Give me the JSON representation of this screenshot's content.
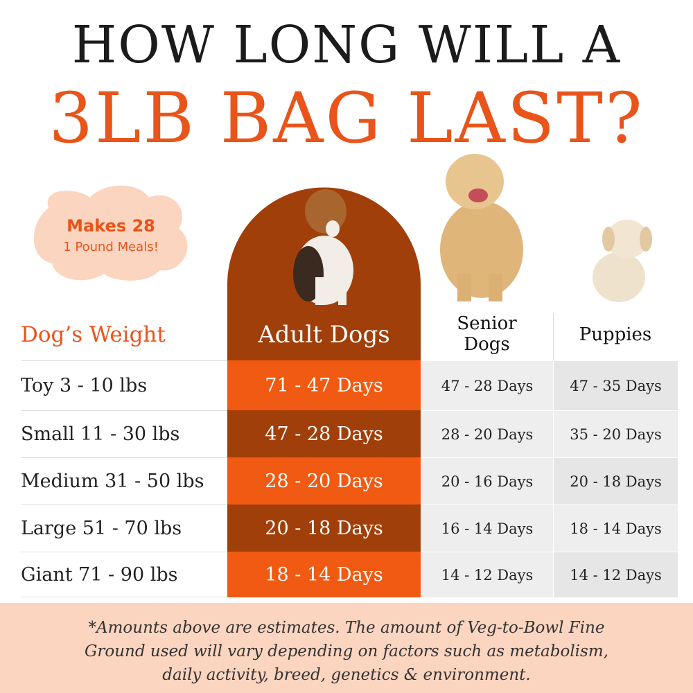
{
  "title": {
    "line1": "HOW LONG WILL A",
    "line2": "3LB BAG LAST?"
  },
  "badge": {
    "line1": "Makes 28",
    "line2": "1 Pound Meals!"
  },
  "table": {
    "headers": [
      "Dog’s Weight",
      "Adult Dogs",
      "Senior Dogs",
      "Puppies"
    ],
    "rows": [
      [
        "Toy 3 - 10 lbs",
        "71 - 47 Days",
        "47 - 28 Days",
        "47 - 35 Days"
      ],
      [
        "Small 11 - 30 lbs",
        "47 - 28 Days",
        "28 - 20 Days",
        "35 - 20 Days"
      ],
      [
        "Medium 31 - 50 lbs",
        "28 - 20 Days",
        "20 - 16 Days",
        "20 - 18 Days"
      ],
      [
        "Large 51 - 70 lbs",
        "20 - 18 Days",
        "16 - 14 Days",
        "18 - 14 Days"
      ],
      [
        "Giant 71 - 90 lbs",
        "18 - 14 Days",
        "14 - 12 Days",
        "14 - 12 Days"
      ]
    ]
  },
  "footnote": {
    "lines": [
      "*Amounts above are estimates. The amount of Veg-to-Bowl  Fine",
      "Ground used will vary depending on factors such as metabolism,",
      "daily activity, breed, genetics & environment."
    ]
  }
}
